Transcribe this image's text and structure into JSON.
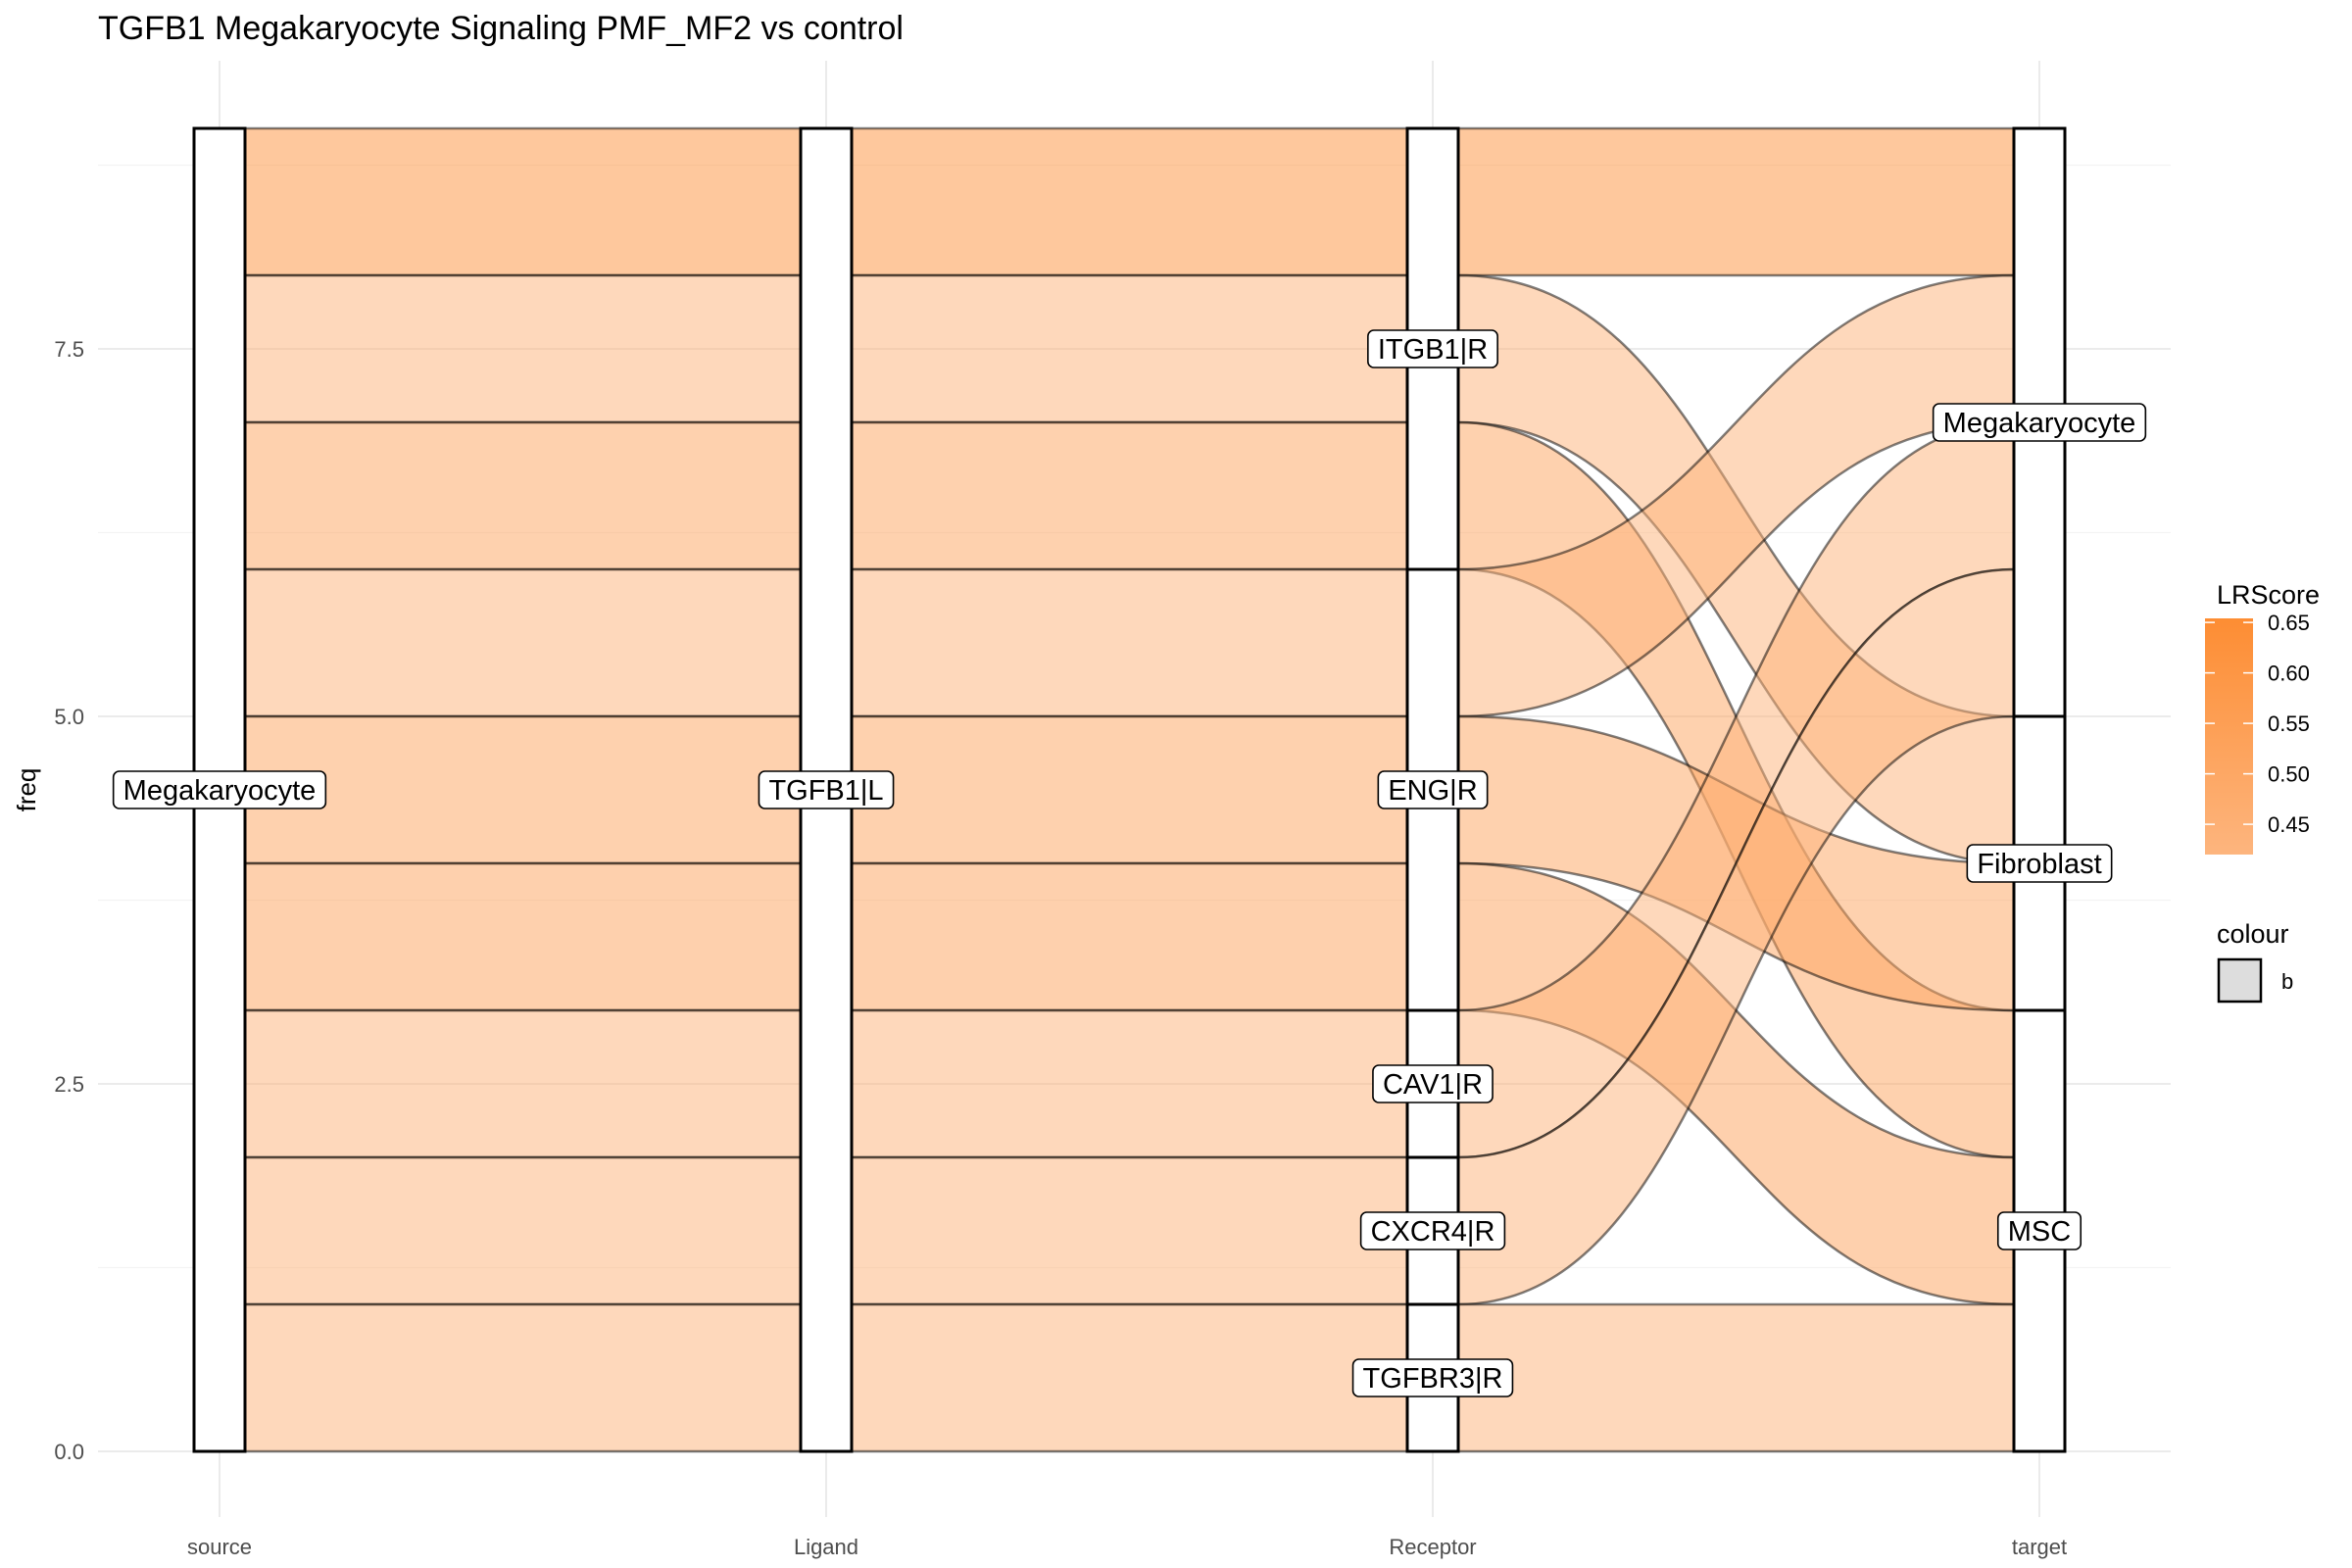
{
  "chart_data": {
    "type": "alluvial",
    "title": "TGFB1 Megakaryocyte Signaling PMF_MF2 vs control",
    "xlabel": "",
    "ylabel": "freq",
    "ylim": [
      0,
      9
    ],
    "y_ticks": [
      "0.0",
      "2.5",
      "5.0",
      "7.5"
    ],
    "y_tick_values": [
      0,
      2.5,
      5,
      7.5
    ],
    "axes": [
      "source",
      "Ligand",
      "Receptor",
      "target"
    ],
    "strata": {
      "source": [
        {
          "label": "Megakaryocyte",
          "ymin": 0,
          "ymax": 9
        }
      ],
      "Ligand": [
        {
          "label": "TGFB1|L",
          "ymin": 0,
          "ymax": 9
        }
      ],
      "Receptor": [
        {
          "label": "ITGB1|R",
          "ymin": 6,
          "ymax": 9
        },
        {
          "label": "ENG|R",
          "ymin": 3,
          "ymax": 6
        },
        {
          "label": "CAV1|R",
          "ymin": 2,
          "ymax": 3
        },
        {
          "label": "CXCR4|R",
          "ymin": 1,
          "ymax": 2
        },
        {
          "label": "TGFBR3|R",
          "ymin": 0,
          "ymax": 1
        }
      ],
      "target": [
        {
          "label": "Megakaryocyte",
          "ymin": 5,
          "ymax": 9
        },
        {
          "label": "Fibroblast",
          "ymin": 3,
          "ymax": 5
        },
        {
          "label": "MSC",
          "ymin": 0,
          "ymax": 3
        }
      ]
    },
    "flows": [
      {
        "source": "Megakaryocyte",
        "ligand": "TGFB1|L",
        "receptor": "ITGB1|R",
        "target": "Megakaryocyte",
        "freq": 1,
        "LRScore": 0.63,
        "y_rec": [
          8,
          9
        ],
        "y_tgt": [
          8,
          9
        ]
      },
      {
        "source": "Megakaryocyte",
        "ligand": "TGFB1|L",
        "receptor": "ITGB1|R",
        "target": "Fibroblast",
        "freq": 1,
        "LRScore": 0.44,
        "y_rec": [
          7,
          8
        ],
        "y_tgt": [
          4,
          5
        ]
      },
      {
        "source": "Megakaryocyte",
        "ligand": "TGFB1|L",
        "receptor": "ITGB1|R",
        "target": "MSC",
        "freq": 1,
        "LRScore": 0.52,
        "y_rec": [
          6,
          7
        ],
        "y_tgt": [
          2,
          3
        ]
      },
      {
        "source": "Megakaryocyte",
        "ligand": "TGFB1|L",
        "receptor": "ENG|R",
        "target": "Megakaryocyte",
        "freq": 1,
        "LRScore": 0.44,
        "y_rec": [
          5,
          6
        ],
        "y_tgt": [
          7,
          8
        ]
      },
      {
        "source": "Megakaryocyte",
        "ligand": "TGFB1|L",
        "receptor": "ENG|R",
        "target": "Fibroblast",
        "freq": 1,
        "LRScore": 0.52,
        "y_rec": [
          4,
          5
        ],
        "y_tgt": [
          3,
          4
        ]
      },
      {
        "source": "Megakaryocyte",
        "ligand": "TGFB1|L",
        "receptor": "ENG|R",
        "target": "MSC",
        "freq": 1,
        "LRScore": 0.53,
        "y_rec": [
          3,
          4
        ],
        "y_tgt": [
          1,
          2
        ]
      },
      {
        "source": "Megakaryocyte",
        "ligand": "TGFB1|L",
        "receptor": "CAV1|R",
        "target": "Megakaryocyte",
        "freq": 1,
        "LRScore": 0.44,
        "y_rec": [
          2,
          3
        ],
        "y_tgt": [
          6,
          7
        ]
      },
      {
        "source": "Megakaryocyte",
        "ligand": "TGFB1|L",
        "receptor": "CXCR4|R",
        "target": "Megakaryocyte",
        "freq": 1,
        "LRScore": 0.44,
        "y_rec": [
          1,
          2
        ],
        "y_tgt": [
          5,
          6
        ]
      },
      {
        "source": "Megakaryocyte",
        "ligand": "TGFB1|L",
        "receptor": "TGFBR3|R",
        "target": "MSC",
        "freq": 1,
        "LRScore": 0.44,
        "y_rec": [
          0,
          1
        ],
        "y_tgt": [
          0,
          1
        ]
      }
    ],
    "legend": {
      "fill": {
        "title": "LRScore",
        "ticks": [
          "0.65",
          "0.60",
          "0.55",
          "0.50",
          "0.45"
        ],
        "tick_values": [
          0.65,
          0.6,
          0.55,
          0.5,
          0.45
        ],
        "range": [
          0.42,
          0.654
        ],
        "low_color": "#fdb57e",
        "high_color": "#fd8d33"
      },
      "colour": {
        "title": "colour",
        "entries": [
          {
            "label": "b",
            "swatch": "#dddddd"
          }
        ]
      },
      "position": "right"
    },
    "grid": true
  }
}
